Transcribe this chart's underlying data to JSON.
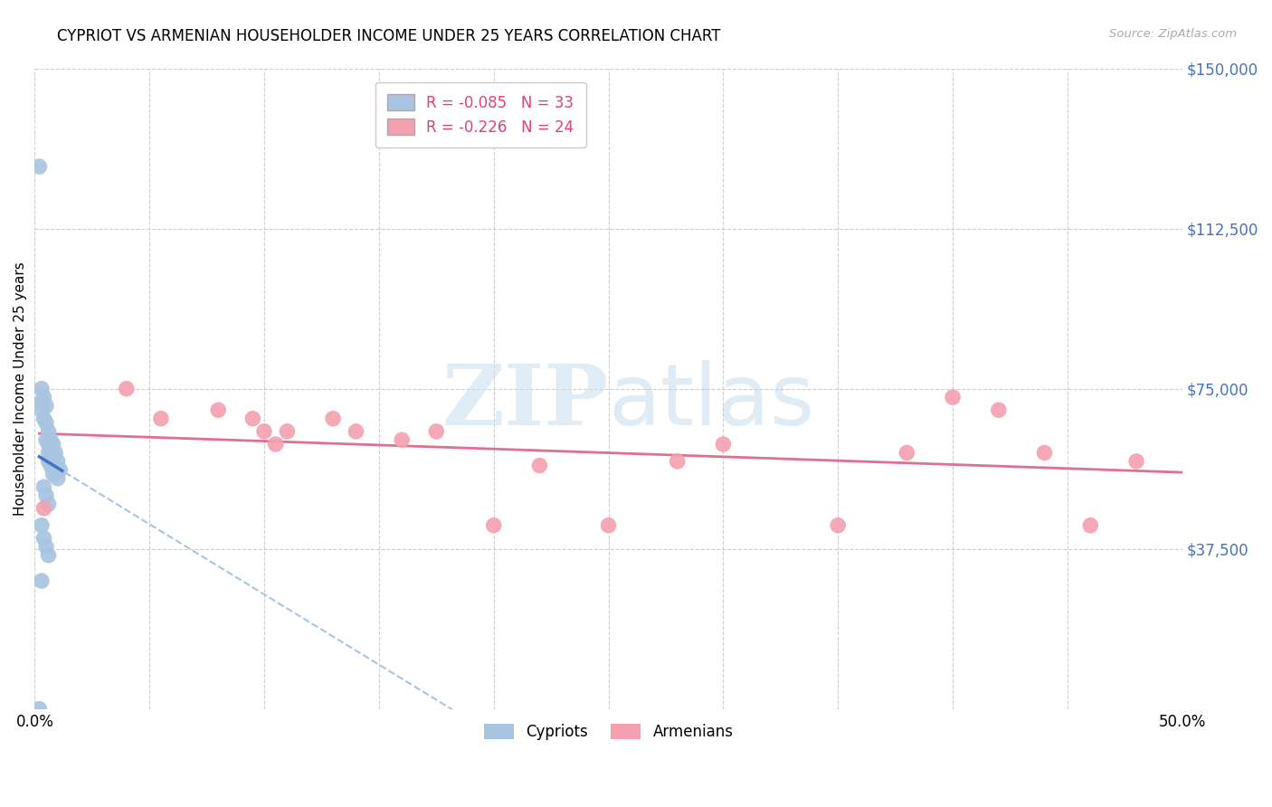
{
  "title": "CYPRIOT VS ARMENIAN HOUSEHOLDER INCOME UNDER 25 YEARS CORRELATION CHART",
  "source": "Source: ZipAtlas.com",
  "ylabel": "Householder Income Under 25 years",
  "xlim": [
    0.0,
    0.5
  ],
  "ylim": [
    0,
    150000
  ],
  "yticks": [
    0,
    37500,
    75000,
    112500,
    150000
  ],
  "ytick_labels": [
    "",
    "$37,500",
    "$75,000",
    "$112,500",
    "$150,000"
  ],
  "xticks": [
    0.0,
    0.05,
    0.1,
    0.15,
    0.2,
    0.25,
    0.3,
    0.35,
    0.4,
    0.45,
    0.5
  ],
  "xtick_labels": [
    "0.0%",
    "",
    "",
    "",
    "",
    "",
    "",
    "",
    "",
    "",
    "50.0%"
  ],
  "cypriot_color": "#a8c4e0",
  "armenian_color": "#f4a0b0",
  "trendline_cypriot_solid_color": "#4472c4",
  "trendline_armenian_color": "#e07090",
  "trendline_cypriot_dashed_color": "#a8c4e0",
  "legend_r_cypriot": "R = -0.085",
  "legend_n_cypriot": "N = 33",
  "legend_r_armenian": "R = -0.226",
  "legend_n_armenian": "N = 24",
  "legend_text_color": "#e0407a",
  "watermark_zip": "ZIP",
  "watermark_atlas": "atlas",
  "cypriot_x": [
    0.002,
    0.003,
    0.003,
    0.003,
    0.004,
    0.004,
    0.005,
    0.005,
    0.005,
    0.006,
    0.006,
    0.006,
    0.006,
    0.007,
    0.007,
    0.007,
    0.008,
    0.008,
    0.008,
    0.009,
    0.009,
    0.01,
    0.01,
    0.011,
    0.004,
    0.005,
    0.006,
    0.003,
    0.004,
    0.005,
    0.006,
    0.003,
    0.002
  ],
  "cypriot_y": [
    127000,
    75000,
    72000,
    70000,
    73000,
    68000,
    71000,
    67000,
    63000,
    65000,
    62000,
    60000,
    58000,
    63000,
    61000,
    57000,
    62000,
    59000,
    55000,
    60000,
    56000,
    58000,
    54000,
    56000,
    52000,
    50000,
    48000,
    43000,
    40000,
    38000,
    36000,
    30000,
    0
  ],
  "armenian_x": [
    0.004,
    0.04,
    0.055,
    0.08,
    0.095,
    0.1,
    0.105,
    0.11,
    0.13,
    0.14,
    0.16,
    0.175,
    0.2,
    0.22,
    0.25,
    0.28,
    0.3,
    0.35,
    0.38,
    0.4,
    0.42,
    0.44,
    0.46,
    0.48
  ],
  "armenian_y": [
    47000,
    75000,
    68000,
    70000,
    68000,
    65000,
    62000,
    65000,
    68000,
    65000,
    63000,
    65000,
    43000,
    57000,
    43000,
    58000,
    62000,
    43000,
    60000,
    73000,
    70000,
    60000,
    43000,
    58000
  ]
}
